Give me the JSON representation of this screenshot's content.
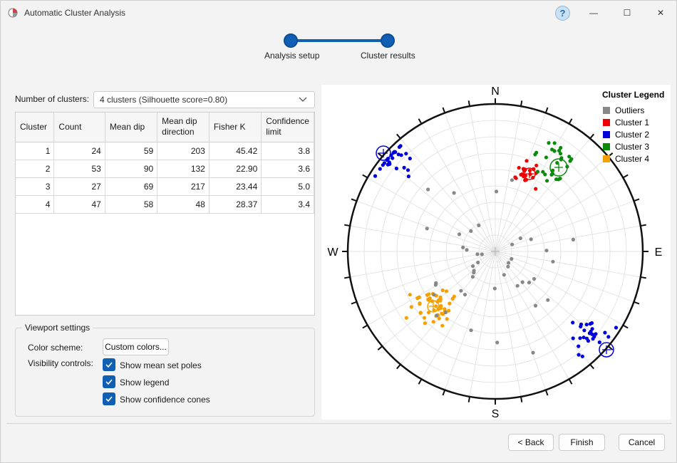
{
  "window": {
    "title": "Automatic Cluster Analysis",
    "help_label": "?",
    "minimize": "—",
    "maximize": "☐",
    "close": "✕"
  },
  "stepper": {
    "steps": [
      {
        "label": "Analysis setup"
      },
      {
        "label": "Cluster results"
      }
    ]
  },
  "clusters_select": {
    "label": "Number of clusters:",
    "value": "4 clusters (Silhouette score=0.80)"
  },
  "table": {
    "headers": [
      "Cluster",
      "Count",
      "Mean dip",
      "Mean dip direction",
      "Fisher K",
      "Confidence limit"
    ],
    "rows": [
      [
        "1",
        "24",
        "59",
        "203",
        "45.42",
        "3.8"
      ],
      [
        "2",
        "53",
        "90",
        "132",
        "22.90",
        "3.6"
      ],
      [
        "3",
        "27",
        "69",
        "217",
        "23.44",
        "5.0"
      ],
      [
        "4",
        "47",
        "58",
        "48",
        "28.37",
        "3.4"
      ]
    ]
  },
  "viewport": {
    "title": "Viewport settings",
    "color_scheme_label": "Color scheme:",
    "custom_colors_button": "Custom colors...",
    "visibility_label": "Visibility controls:",
    "checkboxes": [
      {
        "label": "Show mean set poles",
        "checked": true
      },
      {
        "label": "Show legend",
        "checked": true
      },
      {
        "label": "Show confidence cones",
        "checked": true
      }
    ]
  },
  "stereonet": {
    "north": "N",
    "south": "S",
    "east": "E",
    "west": "W",
    "legend_title": "Cluster Legend",
    "legend": [
      {
        "label": "Outliers",
        "color": "#888888"
      },
      {
        "label": "Cluster 1",
        "color": "#ee0000"
      },
      {
        "label": "Cluster 2",
        "color": "#0000dd"
      },
      {
        "label": "Cluster 3",
        "color": "#0a8a0a"
      },
      {
        "label": "Cluster 4",
        "color": "#f5a000"
      }
    ]
  },
  "footer": {
    "back": "< Back",
    "finish": "Finish",
    "cancel": "Cancel"
  },
  "colors": {
    "accent": "#0f5fb5"
  }
}
